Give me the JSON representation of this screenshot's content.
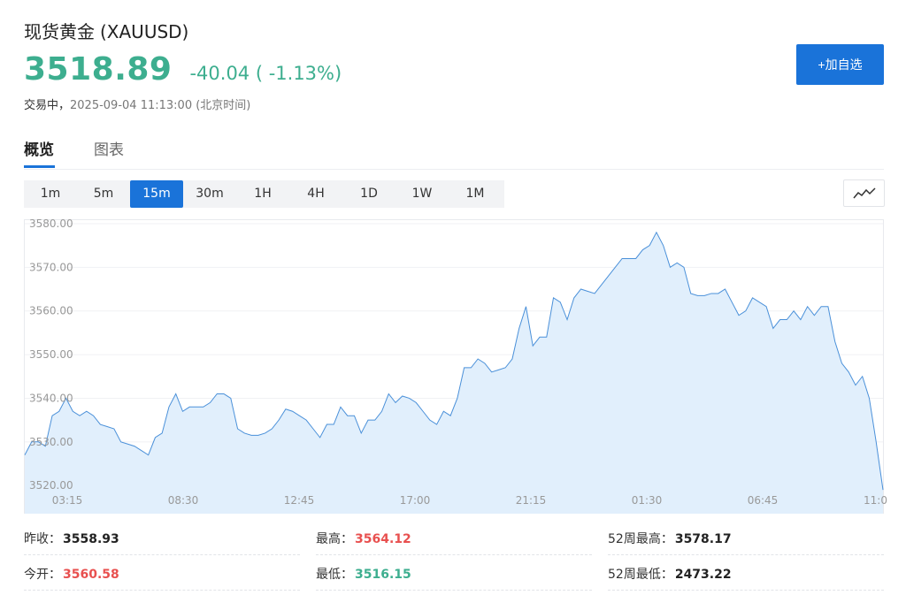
{
  "header": {
    "name": "现货黄金",
    "symbol": "(XAUUSD)",
    "price": "3518.89",
    "change": "-40.04 ( -1.13%)",
    "trade_status": "交易中，",
    "timestamp": "2025-09-04 11:13:00 (北京时间)",
    "add_watchlist": "+加自选"
  },
  "tabs": [
    {
      "label": "概览",
      "active": true
    },
    {
      "label": "图表",
      "active": false
    }
  ],
  "ranges": [
    {
      "label": "1m",
      "active": false
    },
    {
      "label": "5m",
      "active": false
    },
    {
      "label": "15m",
      "active": true
    },
    {
      "label": "30m",
      "active": false
    },
    {
      "label": "1H",
      "active": false
    },
    {
      "label": "4H",
      "active": false
    },
    {
      "label": "1D",
      "active": false
    },
    {
      "label": "1W",
      "active": false
    },
    {
      "label": "1M",
      "active": false
    }
  ],
  "chart_type_icon": "line-chart-icon",
  "chart_data": {
    "type": "area",
    "x_ticks": [
      "03:15",
      "08:30",
      "12:45",
      "17:00",
      "21:15",
      "01:30",
      "06:45",
      "11:0"
    ],
    "y_ticks": [
      "3520.00",
      "3530.00",
      "3540.00",
      "3550.00",
      "3560.00",
      "3570.00",
      "3580.00"
    ],
    "ylim": [
      3517,
      3581
    ],
    "line_color": "#4a90d9",
    "fill_color": "#e1effc",
    "grid": true,
    "values": [
      3527,
      3530,
      3530,
      3529,
      3536,
      3537,
      3540,
      3537,
      3536,
      3537,
      3536,
      3534,
      3533.5,
      3533,
      3530,
      3529.5,
      3529,
      3528,
      3527,
      3531,
      3532,
      3538,
      3541,
      3537,
      3538,
      3538,
      3538,
      3539,
      3541,
      3541,
      3540,
      3533,
      3532,
      3531.5,
      3531.5,
      3532,
      3533,
      3535,
      3537.5,
      3537,
      3536,
      3535,
      3533,
      3531,
      3534,
      3534,
      3538,
      3536,
      3536,
      3532,
      3535,
      3535,
      3537,
      3541,
      3539,
      3540.5,
      3540,
      3539,
      3537,
      3535,
      3534,
      3537,
      3536,
      3540,
      3547,
      3547,
      3549,
      3548,
      3546,
      3546.5,
      3547,
      3549,
      3556,
      3561,
      3552,
      3554,
      3554,
      3563,
      3562,
      3558,
      3563,
      3565,
      3564.5,
      3564,
      3566,
      3568,
      3570,
      3572,
      3572,
      3572,
      3574,
      3575,
      3578,
      3575,
      3570,
      3571,
      3570,
      3564,
      3563.5,
      3563.5,
      3564,
      3564,
      3565,
      3562,
      3559,
      3560,
      3563,
      3562,
      3561,
      3556,
      3558,
      3558,
      3560,
      3558,
      3561,
      3559,
      3561,
      3561,
      3553,
      3548,
      3546,
      3543,
      3545,
      3540,
      3530,
      3519
    ]
  },
  "stats": [
    {
      "label": "昨收：",
      "value": "3558.93",
      "tone": "dark"
    },
    {
      "label": "最高：",
      "value": "3564.12",
      "tone": "up"
    },
    {
      "label": "52周最高：",
      "value": "3578.17",
      "tone": "dark"
    },
    {
      "label": "今开：",
      "value": "3560.58",
      "tone": "up"
    },
    {
      "label": "最低：",
      "value": "3516.15",
      "tone": "down"
    },
    {
      "label": "52周最低：",
      "value": "2473.22",
      "tone": "dark"
    }
  ]
}
